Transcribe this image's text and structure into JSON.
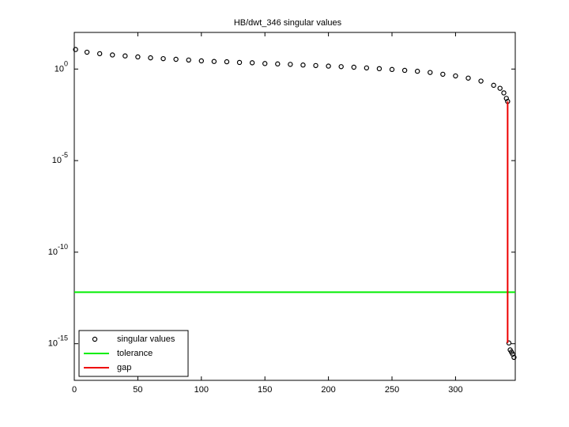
{
  "chart_data": {
    "type": "scatter",
    "title": "HB/dwt_346 singular values",
    "log_y": true,
    "xlim": [
      0,
      347
    ],
    "ylim": [
      1e-17,
      100
    ],
    "xticks": [
      0,
      50,
      100,
      150,
      200,
      250,
      300
    ],
    "yticks": [
      {
        "value": 1,
        "label": "10^0"
      },
      {
        "value": 1e-05,
        "label": "10^-5"
      },
      {
        "value": 1e-10,
        "label": "10^-10"
      },
      {
        "value": 1e-15,
        "label": "10^-15"
      }
    ],
    "legend": "lower left",
    "series": [
      {
        "name": "singular values",
        "color": "#000000",
        "mode": "marker",
        "x": [
          1,
          10,
          20,
          30,
          40,
          50,
          60,
          70,
          80,
          90,
          100,
          110,
          120,
          130,
          140,
          150,
          160,
          170,
          180,
          190,
          200,
          210,
          220,
          230,
          240,
          250,
          260,
          270,
          280,
          290,
          300,
          310,
          320,
          330,
          335,
          338,
          340,
          341,
          342,
          343,
          344,
          345,
          346
        ],
        "values": [
          11.7,
          8.3,
          6.9,
          5.9,
          5.2,
          4.6,
          4.1,
          3.7,
          3.4,
          3.1,
          2.8,
          2.6,
          2.5,
          2.3,
          2.2,
          2.0,
          1.9,
          1.8,
          1.66,
          1.55,
          1.45,
          1.35,
          1.26,
          1.15,
          1.05,
          0.95,
          0.85,
          0.76,
          0.65,
          0.52,
          0.42,
          0.32,
          0.22,
          0.13,
          0.089,
          0.05,
          0.025,
          0.017,
          1.1e-15,
          4.6e-16,
          3.5e-16,
          2.7e-16,
          1.8e-16
        ]
      },
      {
        "name": "tolerance",
        "color": "#00ee00",
        "mode": "line",
        "x": [
          0,
          347
        ],
        "values": [
          6.5e-13,
          6.5e-13
        ]
      },
      {
        "name": "gap",
        "color": "#ee0000",
        "mode": "line",
        "x": [
          341,
          341
        ],
        "values": [
          0.017,
          1.1e-15
        ]
      }
    ]
  }
}
